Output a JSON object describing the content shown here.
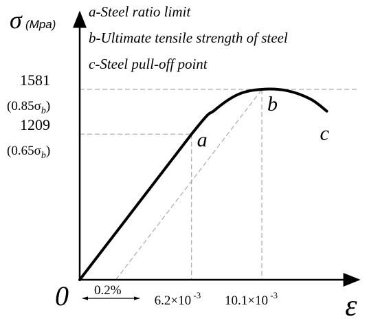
{
  "chart_data": {
    "type": "line",
    "ylabel_symbol": "σ",
    "ylabel_unit": "(Mpa)",
    "xlabel_symbol": "ε",
    "origin_label": "0",
    "legend": [
      "a-Steel ratio limit",
      "b-Ultimate tensile strength of steel",
      "c-Steel pull-off point"
    ],
    "y_ticks": [
      {
        "value": 1581,
        "label": "1581",
        "sub_label_prefix": "(0.85σ",
        "sub_label_sub": "b",
        "sub_label_suffix": ")"
      },
      {
        "value": 1209,
        "label": "1209",
        "sub_label_prefix": "(0.65σ",
        "sub_label_sub": "b",
        "sub_label_suffix": ")"
      }
    ],
    "x_ticks": [
      {
        "value": 0.0062,
        "mantissa": "6.2×10",
        "exponent": "-3"
      },
      {
        "value": 0.0101,
        "mantissa": "10.1×10",
        "exponent": "-3"
      }
    ],
    "offset_label": "0.2%",
    "offset_value": 0.002,
    "points": [
      {
        "name": "a",
        "x": 0.0062,
        "y": 1209
      },
      {
        "name": "b",
        "x": 0.0101,
        "y": 1581
      },
      {
        "name": "c",
        "x": 0.0137,
        "y": 1400
      }
    ],
    "curve": {
      "x": [
        0,
        0.0062,
        0.0075,
        0.0088,
        0.0101,
        0.0115,
        0.0128,
        0.0137
      ],
      "y": [
        0,
        1209,
        1410,
        1540,
        1581,
        1570,
        1500,
        1400
      ]
    },
    "xlim": [
      0,
      0.0175
    ],
    "ylim": [
      0,
      1900
    ]
  }
}
